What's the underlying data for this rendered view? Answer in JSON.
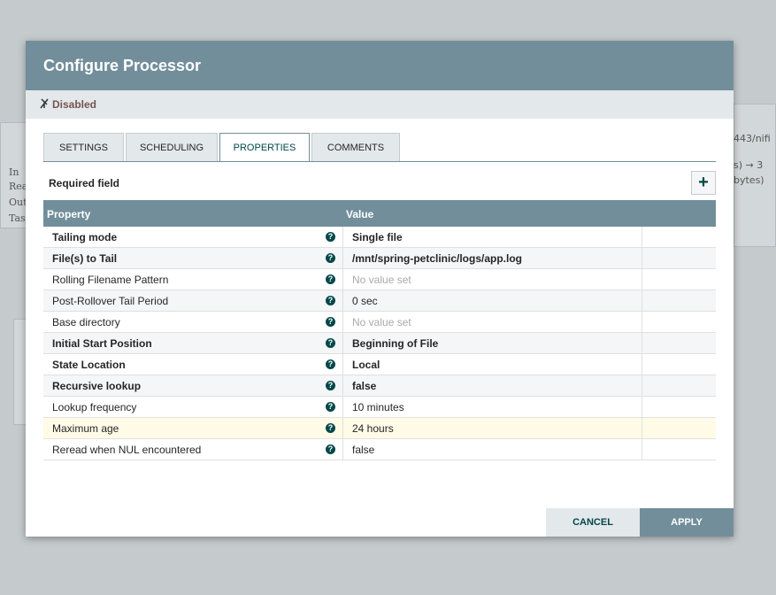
{
  "background": {
    "left_panel": [
      "In",
      "Rea",
      "Out",
      "Tas"
    ],
    "right_panel": [
      "443/nifi",
      "s) → 3",
      "bytes)"
    ]
  },
  "dialog": {
    "title": "Configure Processor",
    "status": "Disabled",
    "tabs": [
      "SETTINGS",
      "SCHEDULING",
      "PROPERTIES",
      "COMMENTS"
    ],
    "active_tab": 2,
    "required_note": "Required field",
    "table": {
      "headers": [
        "Property",
        "Value"
      ],
      "selected_row": 9,
      "rows": [
        {
          "property": "Tailing mode",
          "value": "Single file",
          "required": true
        },
        {
          "property": "File(s) to Tail",
          "value": "/mnt/spring-petclinic/logs/app.log",
          "required": true
        },
        {
          "property": "Rolling Filename Pattern",
          "value": "No value set",
          "required": false,
          "unset": true
        },
        {
          "property": "Post-Rollover Tail Period",
          "value": "0 sec",
          "required": false
        },
        {
          "property": "Base directory",
          "value": "No value set",
          "required": false,
          "unset": true
        },
        {
          "property": "Initial Start Position",
          "value": "Beginning of File",
          "required": true
        },
        {
          "property": "State Location",
          "value": "Local",
          "required": true
        },
        {
          "property": "Recursive lookup",
          "value": "false",
          "required": true
        },
        {
          "property": "Lookup frequency",
          "value": "10 minutes",
          "required": false
        },
        {
          "property": "Maximum age",
          "value": "24 hours",
          "required": false
        },
        {
          "property": "Reread when NUL encountered",
          "value": "false",
          "required": false
        }
      ]
    },
    "buttons": [
      "CANCEL",
      "APPLY"
    ]
  }
}
